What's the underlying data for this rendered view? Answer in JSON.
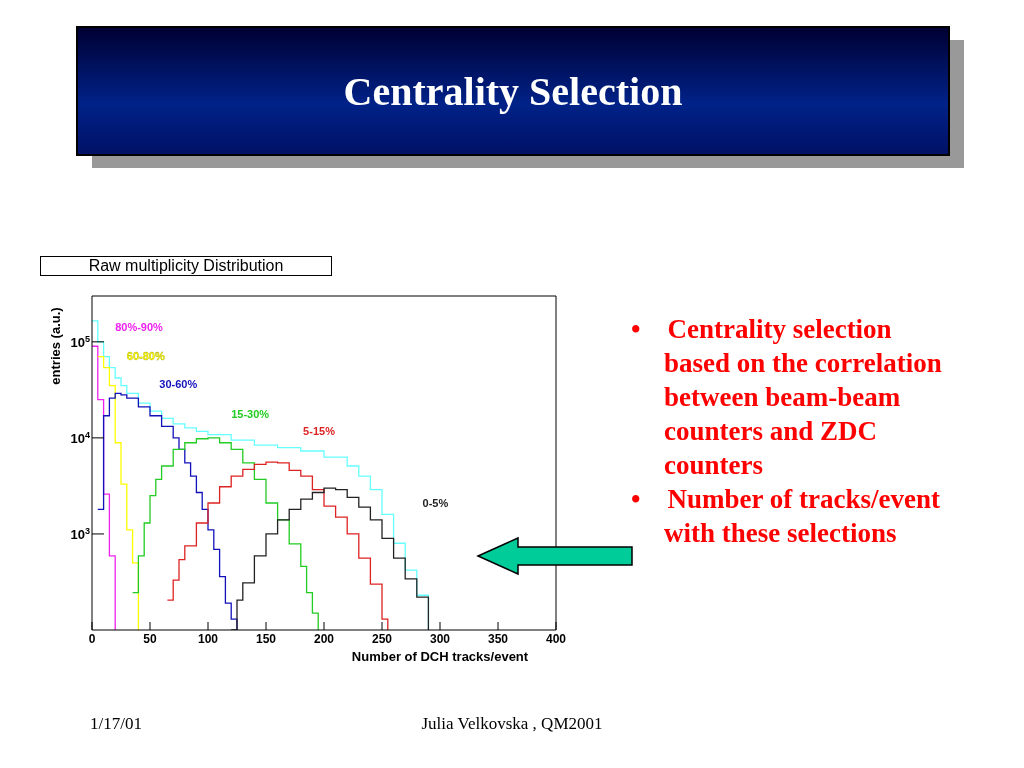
{
  "chart_data": {
    "type": "step",
    "title": "Centrality Selection",
    "subtitle": "Raw multiplicity Distribution",
    "xlabel": "Number of DCH tracks/event",
    "ylabel": "entries (a.u.)",
    "xlim": [
      0,
      400
    ],
    "xticks": [
      0,
      50,
      100,
      150,
      200,
      250,
      300,
      350,
      400
    ],
    "ylim": [
      100,
      300000
    ],
    "yticks": [
      {
        "value": 1000,
        "label": "10$^{3}$"
      },
      {
        "value": 10000,
        "label": "10$^{4}$"
      },
      {
        "value": 100000,
        "label": "10$^{5}$"
      }
    ],
    "log": "y",
    "series": [
      {
        "color": "#66ffff",
        "x": [
          0,
          5,
          10,
          15,
          20,
          25,
          30,
          40,
          50,
          60,
          70,
          80,
          90,
          100,
          120,
          140,
          160,
          180,
          200,
          220,
          230,
          240,
          250,
          260,
          270,
          280,
          290
        ],
        "values": [
          165000,
          100000,
          70000,
          54000,
          42000,
          35000,
          29000,
          23000,
          19000,
          16000,
          14000,
          12700,
          11700,
          10800,
          9500,
          8400,
          7900,
          7300,
          6300,
          5100,
          4000,
          2900,
          1600,
          800,
          420,
          230,
          100
        ]
      },
      {
        "name": "80%-90%",
        "color": "#ee22ee",
        "x": [
          0,
          5,
          10,
          15,
          20
        ],
        "values": [
          90000,
          25000,
          2600,
          590,
          100
        ]
      },
      {
        "name": "60-80%",
        "color": "#ffff00",
        "x": [
          5,
          10,
          15,
          20,
          25,
          30,
          35,
          40
        ],
        "values": [
          70000,
          54000,
          35000,
          8900,
          3300,
          1100,
          500,
          100
        ]
      },
      {
        "name": "30-60%",
        "color": "#1111bb",
        "x": [
          5,
          10,
          15,
          20,
          25,
          30,
          40,
          50,
          60,
          70,
          75,
          80,
          85,
          90,
          95,
          100,
          105,
          110,
          115,
          120,
          125
        ],
        "values": [
          1800,
          17000,
          26000,
          29000,
          28000,
          26000,
          21000,
          17000,
          13200,
          10000,
          7600,
          5500,
          4000,
          2700,
          1800,
          1100,
          690,
          360,
          190,
          130,
          100
        ]
      },
      {
        "name": "15-30%",
        "color": "#22cc22",
        "x": [
          35,
          40,
          45,
          50,
          55,
          60,
          70,
          80,
          90,
          100,
          110,
          120,
          130,
          140,
          150,
          160,
          170,
          180,
          185,
          190,
          195
        ],
        "values": [
          245,
          590,
          1300,
          2500,
          3700,
          5100,
          7600,
          8900,
          9800,
          10000,
          8900,
          7600,
          5500,
          3700,
          2100,
          1400,
          790,
          460,
          245,
          150,
          100
        ]
      },
      {
        "name": "5-15%",
        "color": "#dd2222",
        "x": [
          65,
          70,
          75,
          80,
          90,
          100,
          110,
          120,
          130,
          140,
          150,
          160,
          170,
          180,
          190,
          200,
          210,
          220,
          230,
          240,
          250,
          255
        ],
        "values": [
          205,
          330,
          540,
          750,
          1300,
          2100,
          3100,
          4000,
          4700,
          5300,
          5600,
          5500,
          4600,
          4000,
          2900,
          1950,
          1500,
          1000,
          560,
          300,
          130,
          100
        ]
      },
      {
        "name": "0-5%",
        "color": "#222222",
        "x": [
          120,
          125,
          130,
          140,
          150,
          160,
          170,
          180,
          190,
          200,
          210,
          220,
          230,
          240,
          250,
          260,
          270,
          280,
          290
        ],
        "values": [
          100,
          205,
          310,
          590,
          1000,
          1400,
          1800,
          2300,
          2700,
          3000,
          2900,
          2400,
          1900,
          1400,
          900,
          560,
          340,
          220,
          100
        ]
      }
    ],
    "annotations": [
      "• Centrality selection based on the correlation between beam-beam counters and ZDC counters",
      "• Number of tracks/event with these selections",
      "1/17/01",
      "Julia Velkovska , QM2001"
    ]
  }
}
